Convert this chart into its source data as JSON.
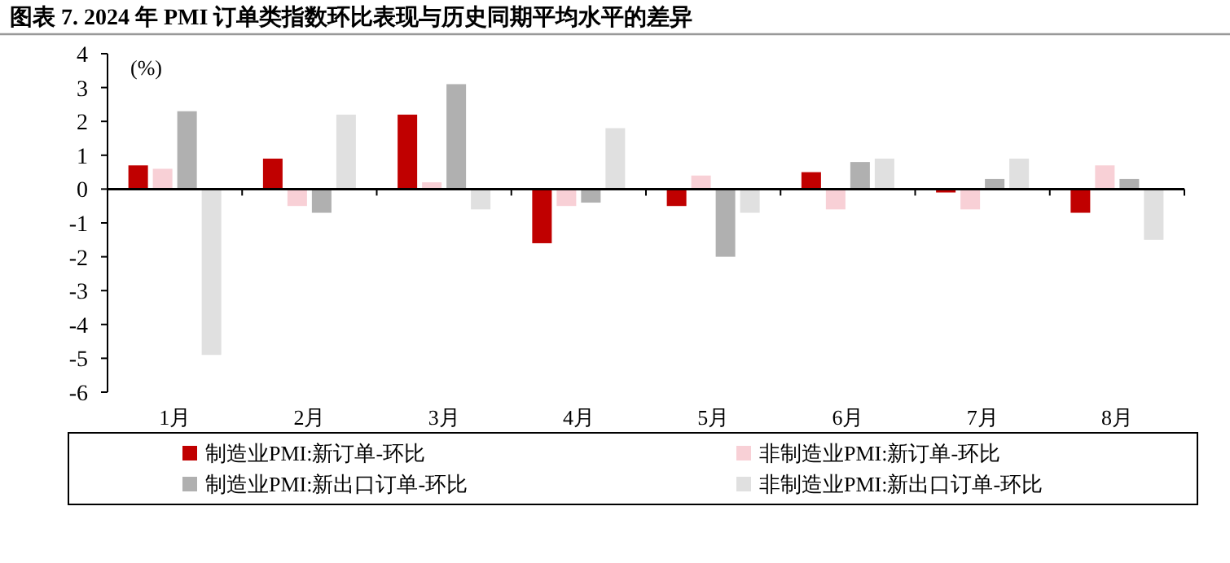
{
  "chart_data": {
    "type": "bar",
    "title": "图表 7. 2024 年 PMI 订单类指数环比表现与历史同期平均水平的差异",
    "ylabel": "(%)",
    "categories": [
      "1月",
      "2月",
      "3月",
      "4月",
      "5月",
      "6月",
      "7月",
      "8月"
    ],
    "series": [
      {
        "name": "制造业PMI:新订单-环比",
        "color": "#c00000",
        "values": [
          0.7,
          0.9,
          2.2,
          -1.6,
          -0.5,
          0.5,
          -0.1,
          -0.7
        ]
      },
      {
        "name": "非制造业PMI:新订单-环比",
        "color": "#f8d0d6",
        "values": [
          0.6,
          -0.5,
          0.2,
          -0.5,
          0.4,
          -0.6,
          -0.6,
          0.7
        ]
      },
      {
        "name": "制造业PMI:新出口订单-环比",
        "color": "#b0b0b0",
        "values": [
          2.3,
          -0.7,
          3.1,
          -0.4,
          -2.0,
          0.8,
          0.3,
          0.3
        ]
      },
      {
        "name": "非制造业PMI:新出口订单-环比",
        "color": "#e0e0e0",
        "values": [
          -4.9,
          2.2,
          -0.6,
          1.8,
          -0.7,
          0.9,
          0.9,
          -1.5
        ]
      }
    ],
    "ylim": [
      -6,
      4
    ],
    "yticks": [
      -6,
      -5,
      -4,
      -3,
      -2,
      -1,
      0,
      1,
      2,
      3,
      4
    ],
    "legend": "bottom"
  }
}
